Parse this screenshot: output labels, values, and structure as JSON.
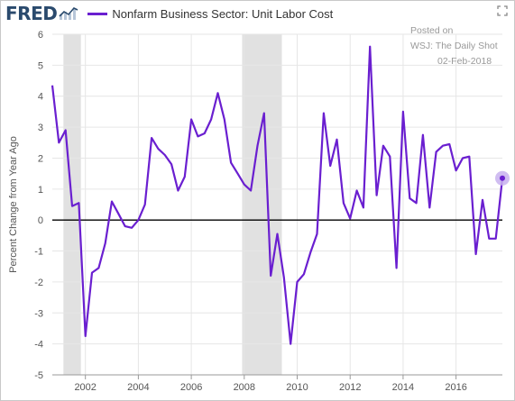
{
  "brand": {
    "logo_text": "FRED",
    "logo_icon": "line-chart-icon",
    "expand_icon": "expand-icon"
  },
  "legend": {
    "label": "Nonfarm Business Sector: Unit Labor Cost",
    "color": "#6a1fd0"
  },
  "annotation": {
    "line1": "Posted on",
    "line2": "WSJ: The Daily Shot",
    "line3": "02-Feb-2018"
  },
  "chart_data": {
    "type": "line",
    "title": "",
    "xlabel": "",
    "ylabel": "Percent Change from Year Ago",
    "ylim": [
      -5,
      6
    ],
    "xlim": [
      2000.75,
      2017.75
    ],
    "yticks": [
      -5,
      -4,
      -3,
      -2,
      -1,
      0,
      1,
      2,
      3,
      4,
      5,
      6
    ],
    "xticks": [
      2002,
      2004,
      2006,
      2008,
      2010,
      2012,
      2014,
      2016
    ],
    "grid": true,
    "recessions": [
      [
        2001.17,
        2001.83
      ],
      [
        2007.92,
        2009.42
      ]
    ],
    "zero_line": true,
    "series": [
      {
        "name": "Nonfarm Business Sector: Unit Labor Cost",
        "color": "#6a1fd0",
        "x": [
          2000.75,
          2001.0,
          2001.25,
          2001.5,
          2001.75,
          2002.0,
          2002.25,
          2002.5,
          2002.75,
          2003.0,
          2003.25,
          2003.5,
          2003.75,
          2004.0,
          2004.25,
          2004.5,
          2004.75,
          2005.0,
          2005.25,
          2005.5,
          2005.75,
          2006.0,
          2006.25,
          2006.5,
          2006.75,
          2007.0,
          2007.25,
          2007.5,
          2007.75,
          2008.0,
          2008.25,
          2008.5,
          2008.75,
          2009.0,
          2009.25,
          2009.5,
          2009.75,
          2010.0,
          2010.25,
          2010.5,
          2010.75,
          2011.0,
          2011.25,
          2011.5,
          2011.75,
          2012.0,
          2012.25,
          2012.5,
          2012.75,
          2013.0,
          2013.25,
          2013.5,
          2013.75,
          2014.0,
          2014.25,
          2014.5,
          2014.75,
          2015.0,
          2015.25,
          2015.5,
          2015.75,
          2016.0,
          2016.25,
          2016.5,
          2016.75,
          2017.0,
          2017.25,
          2017.5,
          2017.75
        ],
        "values": [
          4.35,
          2.5,
          2.9,
          0.45,
          0.55,
          -3.75,
          -1.7,
          -1.55,
          -0.75,
          0.6,
          0.2,
          -0.2,
          -0.25,
          0.0,
          0.5,
          2.65,
          2.3,
          2.1,
          1.8,
          0.95,
          1.4,
          3.25,
          2.7,
          2.8,
          3.25,
          4.1,
          3.25,
          1.85,
          1.5,
          1.15,
          0.95,
          2.4,
          3.45,
          -1.8,
          -0.45,
          -1.85,
          -4.0,
          -2.0,
          -1.75,
          -1.05,
          -0.45,
          3.45,
          1.75,
          2.6,
          0.55,
          0.05,
          0.95,
          0.4,
          5.6,
          0.8,
          2.4,
          2.05,
          -1.55,
          3.5,
          0.7,
          0.55,
          2.75,
          0.4,
          2.2,
          2.4,
          2.45,
          1.6,
          2.0,
          2.05,
          -1.1,
          0.65,
          -0.6,
          -0.6,
          1.35
        ]
      }
    ]
  }
}
